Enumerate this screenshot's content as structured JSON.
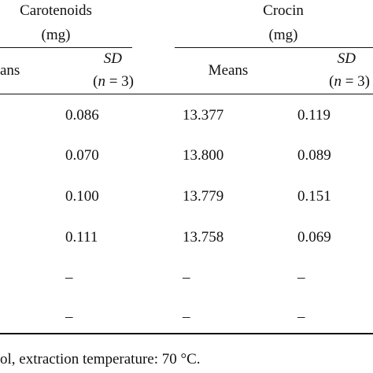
{
  "table": {
    "groups": [
      {
        "name": "Carotenoids",
        "unit": "(mg)"
      },
      {
        "name": "Crocin",
        "unit": "(mg)"
      }
    ],
    "subheaders": {
      "means_partial": "ans",
      "means": "Means",
      "sd": "SD",
      "n_open": "(",
      "n_var": "n",
      "n_rest": " = 3)"
    },
    "rows": [
      {
        "car_sd": "0.086",
        "cro_mean": "13.377",
        "cro_sd": "0.119"
      },
      {
        "car_sd": "0.070",
        "cro_mean": "13.800",
        "cro_sd": "0.089"
      },
      {
        "car_sd": "0.100",
        "cro_mean": "13.779",
        "cro_sd": "0.151"
      },
      {
        "car_sd": "0.111",
        "cro_mean": "13.758",
        "cro_sd": "0.069"
      },
      {
        "car_sd": "–",
        "cro_mean": "–",
        "cro_sd": "–"
      },
      {
        "car_sd": "–",
        "cro_mean": "–",
        "cro_sd": "–"
      }
    ]
  },
  "footnote": "ol, extraction temperature: 70 °C."
}
